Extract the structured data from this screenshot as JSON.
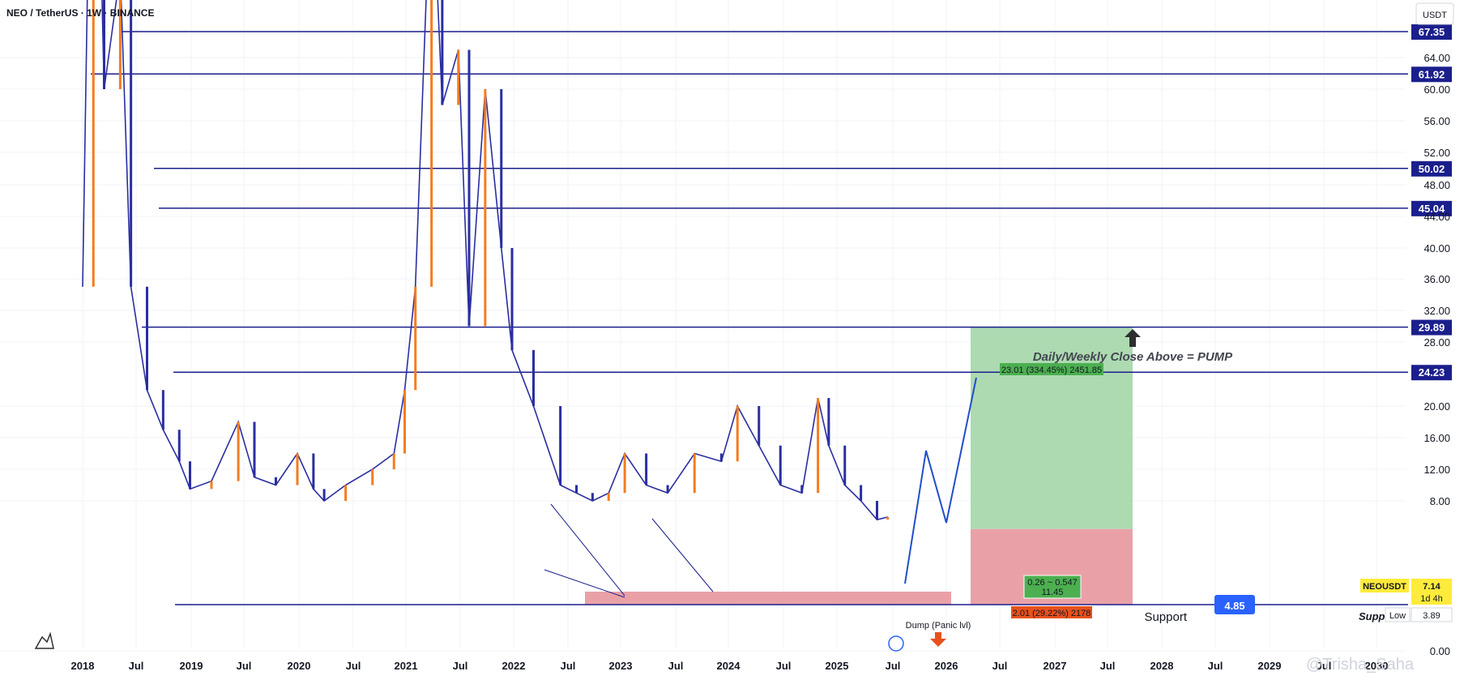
{
  "header": {
    "title": "NEO / TetherUS · 1W · BINANCE",
    "currency": "USDT"
  },
  "chart_data": {
    "type": "line",
    "symbol": "NEOUSDT",
    "price_scale": "log",
    "y_ticks": [
      "64.00",
      "60.00",
      "56.00",
      "52.00",
      "48.00",
      "44.00",
      "40.00",
      "36.00",
      "32.00",
      "28.00",
      "20.00",
      "16.00",
      "12.00",
      "8.00",
      "0.00"
    ],
    "y_tick_values": [
      64,
      60,
      56,
      52,
      48,
      44,
      40,
      36,
      32,
      28,
      20,
      16,
      12,
      8,
      0.01
    ],
    "x_ticks": [
      "2018",
      "Jul",
      "2019",
      "Jul",
      "2020",
      "Jul",
      "2021",
      "Jul",
      "2022",
      "Jul",
      "2023",
      "Jul",
      "2024",
      "Jul",
      "2025",
      "Jul",
      "2026",
      "Jul",
      "2027",
      "Jul",
      "2028",
      "Jul",
      "2029",
      "Jul",
      "2030"
    ],
    "levels": [
      {
        "label": "67.35",
        "value": 67.35
      },
      {
        "label": "61.92",
        "value": 61.92
      },
      {
        "label": "50.02",
        "value": 50.02
      },
      {
        "label": "45.04",
        "value": 45.04
      },
      {
        "label": "29.89",
        "value": 29.89
      },
      {
        "label": "24.23",
        "value": 24.23
      }
    ],
    "price_series": {
      "name": "NEOUSDT",
      "x": [
        2018.0,
        2018.1,
        2018.2,
        2018.35,
        2018.45,
        2018.6,
        2018.75,
        2018.9,
        2019.0,
        2019.2,
        2019.45,
        2019.6,
        2019.8,
        2020.0,
        2020.15,
        2020.25,
        2020.45,
        2020.7,
        2020.9,
        2021.0,
        2021.1,
        2021.25,
        2021.35,
        2021.5,
        2021.6,
        2021.75,
        2021.9,
        2022.0,
        2022.2,
        2022.45,
        2022.6,
        2022.75,
        2022.9,
        2023.05,
        2023.25,
        2023.45,
        2023.7,
        2023.95,
        2024.1,
        2024.3,
        2024.5,
        2024.7,
        2024.85,
        2024.95,
        2025.1,
        2025.25,
        2025.4,
        2025.5
      ],
      "y": [
        35,
        120,
        60,
        75,
        35,
        22,
        17,
        13,
        9.5,
        10.5,
        18,
        11,
        10,
        14,
        9.5,
        8,
        10,
        12,
        14,
        22,
        35,
        90,
        58,
        65,
        30,
        60,
        40,
        27,
        20,
        10,
        9,
        8,
        9,
        14,
        10,
        9,
        14,
        13,
        20,
        15,
        10,
        9,
        21,
        15,
        10,
        8,
        7,
        7.14
      ]
    },
    "annotations": {
      "projection_text": "Daily/Weekly Close Above = PUMP",
      "target_label": "23.01 (334.45%) 2451.85",
      "stop_label": "2.01 (29.22%) 2178",
      "rr_label_1": "0.26 ~ 0.547",
      "rr_label_2": "11.45",
      "support_label": "Support",
      "support_value": "4.85",
      "support_clip": "Supp",
      "dump_label": "Dump (Panic lvl)",
      "current_symbol": "NEOUSDT",
      "current_price": "7.14",
      "current_timer": "1d 4h",
      "low_label": "Low",
      "low_value": "3.89",
      "watermark": "@Trisha_Saha"
    },
    "colors": {
      "up": "#f57c1f",
      "down": "#2a2ea0",
      "line": "#1a1f8c",
      "target": "#9fd3a3",
      "stop": "#e9a1a7",
      "support_badge": "#2962ff"
    }
  }
}
